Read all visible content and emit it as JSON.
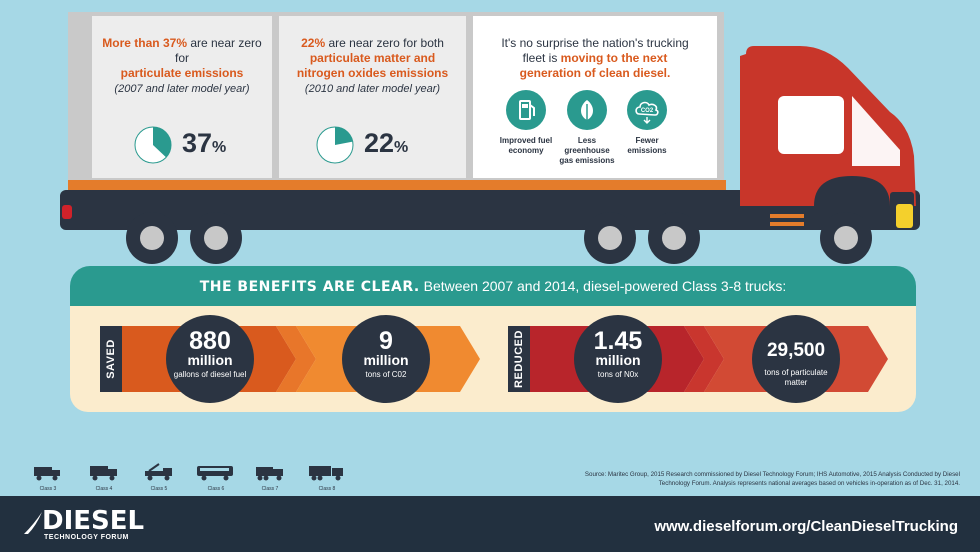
{
  "panel1": {
    "line1_bold": "More than 37%",
    "line1_rest": " are near zero for",
    "line2": "particulate emissions",
    "note": "(2007 and later model year)",
    "pct_value": "37",
    "pct_sign": "%",
    "pie_fraction": 0.37
  },
  "panel2": {
    "line1_bold": "22%",
    "line1_rest": " are near zero for both",
    "line2": "particulate matter and nitrogen oxides emissions",
    "note": "(2010 and later model year)",
    "pct_value": "22",
    "pct_sign": "%",
    "pie_fraction": 0.22
  },
  "panel3": {
    "intro": "It's no surprise the nation's trucking fleet is",
    "intro_bold": "moving to the next generation of clean diesel.",
    "icons": [
      {
        "name": "fuel-pump-icon",
        "label": "Improved fuel economy"
      },
      {
        "name": "leaf-icon",
        "label": "Less greenhouse gas emissions"
      },
      {
        "name": "co2-cloud-icon",
        "label": "Fewer emissions",
        "glyph": "CO2"
      }
    ]
  },
  "benefits": {
    "title_bold": "THE BENEFITS ARE CLEAR.",
    "title_rest": " Between 2007 and 2014, diesel-powered Class 3-8 trucks:",
    "saved_label": "SAVED",
    "reduced_label": "REDUCED",
    "stats": [
      {
        "big": "880",
        "mid": "million",
        "small": "gallons of diesel fuel"
      },
      {
        "big": "9",
        "mid": "million",
        "small": "tons of C02"
      },
      {
        "big": "1.45",
        "mid": "million",
        "small": "tons of N0x"
      },
      {
        "big": "29,500",
        "mid": "",
        "small": "tons of particulate matter"
      }
    ]
  },
  "vehicle_icons": [
    "Class 3",
    "Class 4",
    "Class 5",
    "Class 6",
    "Class 7",
    "Class 8"
  ],
  "source": "Source: Maritec Group, 2015 Research commissioned by Diesel Technology Forum; IHS Automotive, 2015 Analysis Conducted by Diesel Technology Forum. Analysis represents national averages based on vehicles in-operation as of Dec. 31, 2014.",
  "footer": {
    "logo_word": "DIESEL",
    "logo_sub": "TECHNOLOGY FORUM",
    "url": "www.dieselforum.org/CleanDieselTrucking"
  },
  "colors": {
    "background": "#a6d8e6",
    "teal": "#2a9a8f",
    "navy": "#2b3442",
    "orange": "#e47c2b",
    "red": "#c8362a"
  }
}
